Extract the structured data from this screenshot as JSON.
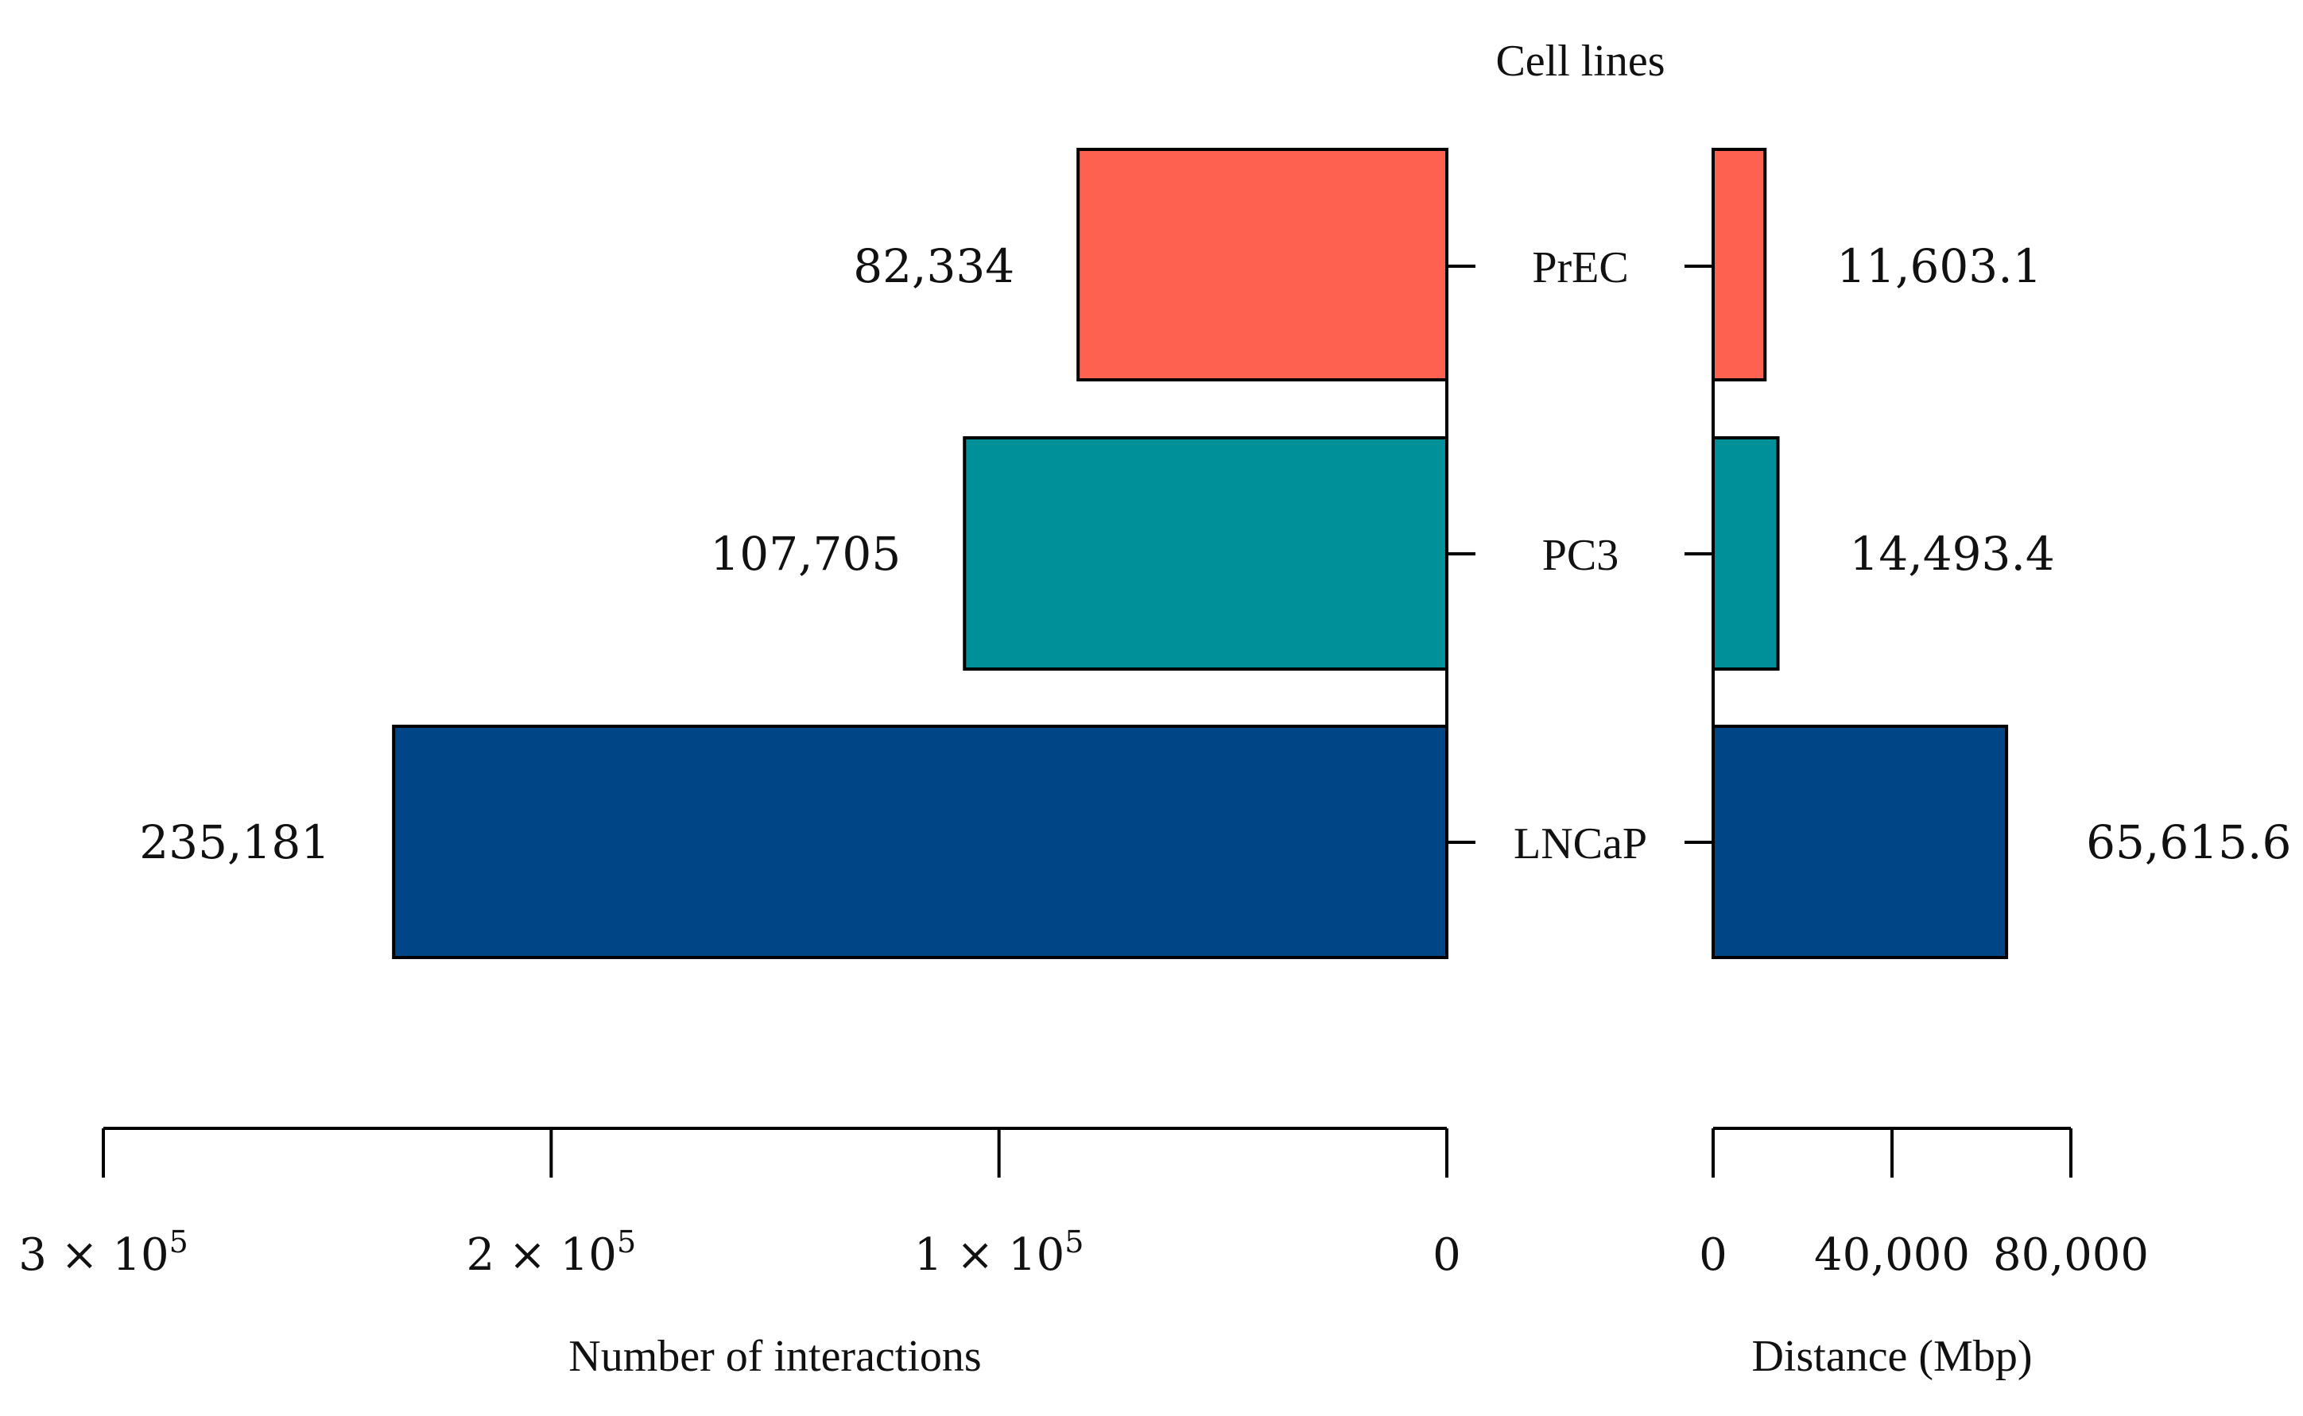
{
  "chart_data": {
    "type": "bar",
    "orientation": "horizontal",
    "categories_title": "Cell lines",
    "categories": [
      "PrEC",
      "PC3",
      "LNCaP"
    ],
    "colors": [
      "#FF6150",
      "#00909A",
      "#004586"
    ],
    "panels": [
      {
        "name": "interactions",
        "xlabel": "Number of interactions",
        "direction": "leftward",
        "xlim": [
          0,
          300000
        ],
        "ticks": [
          {
            "value": 0,
            "base": "0",
            "exp": ""
          },
          {
            "value": 100000,
            "base": "1 × 10",
            "exp": "5"
          },
          {
            "value": 200000,
            "base": "2 × 10",
            "exp": "5"
          },
          {
            "value": 300000,
            "base": "3 × 10",
            "exp": "5"
          }
        ],
        "values": [
          82334,
          107705,
          235181
        ],
        "value_labels": [
          "82,334",
          "107,705",
          "235,181"
        ]
      },
      {
        "name": "distance",
        "xlabel": "Distance (Mbp)",
        "direction": "rightward",
        "xlim": [
          0,
          80000
        ],
        "ticks": [
          {
            "value": 0,
            "base": "0",
            "exp": ""
          },
          {
            "value": 40000,
            "base": "40,000",
            "exp": ""
          },
          {
            "value": 80000,
            "base": "80,000",
            "exp": ""
          }
        ],
        "values": [
          11603.1,
          14493.4,
          65615.6
        ],
        "value_labels": [
          "11,603.1",
          "14,493.4",
          "65,615.6"
        ]
      }
    ]
  }
}
